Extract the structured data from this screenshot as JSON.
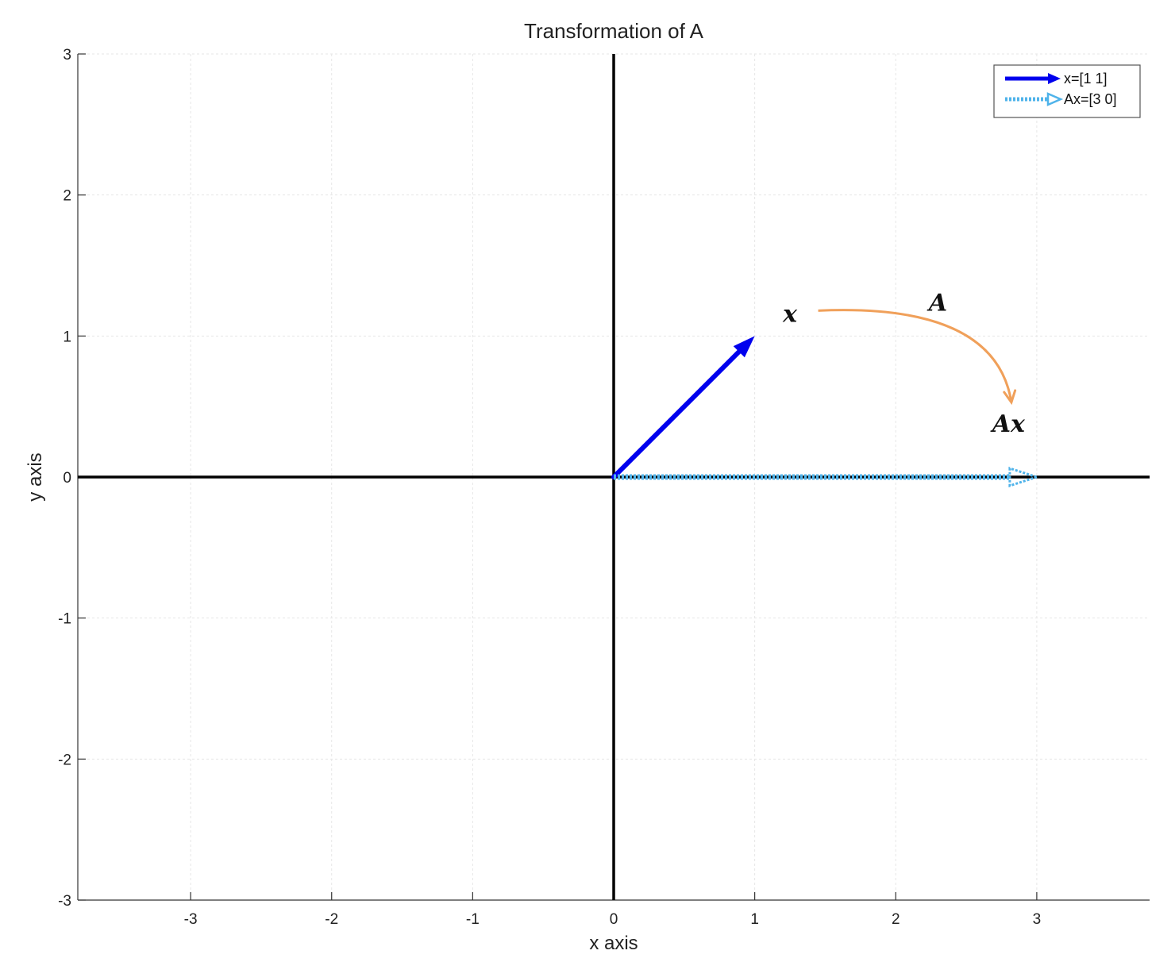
{
  "chart_data": {
    "type": "line",
    "title": "Transformation of A",
    "xlabel": "x axis",
    "ylabel": "y axis",
    "xlim": [
      -3.8,
      3.8
    ],
    "ylim": [
      -3,
      3
    ],
    "xticks": [
      -3,
      -2,
      -1,
      0,
      1,
      2,
      3
    ],
    "yticks": [
      -3,
      -2,
      -1,
      0,
      1,
      2,
      3
    ],
    "grid": true,
    "legend_position": "top-right",
    "series": [
      {
        "name": "x=[1 1]",
        "style": "solid-arrow",
        "color": "#0000ee",
        "x": [
          0,
          1
        ],
        "y": [
          0,
          1
        ]
      },
      {
        "name": "Ax=[3 0]",
        "style": "dotted-arrow",
        "color": "#4fb3ea",
        "x": [
          0,
          3
        ],
        "y": [
          0,
          0
        ]
      }
    ],
    "annotations": [
      {
        "text": "x",
        "x": 1.25,
        "y": 1.1
      },
      {
        "text": "A",
        "x": 2.3,
        "y": 1.18
      },
      {
        "text": "Ax",
        "x": 2.8,
        "y": 0.32
      }
    ],
    "transform_arrow": {
      "color": "#f0a05a",
      "from": [
        1.45,
        1.18
      ],
      "to": [
        2.82,
        0.53
      ]
    }
  }
}
